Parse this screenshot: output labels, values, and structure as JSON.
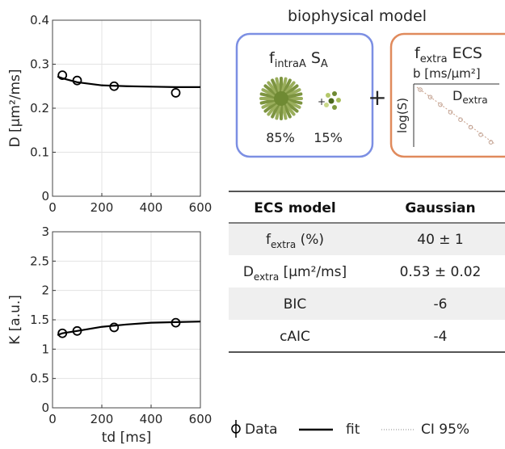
{
  "chart_data": [
    {
      "type": "line",
      "ylabel": "D [μm²/ms]",
      "xlim": [
        0,
        600
      ],
      "xticks": [
        0,
        200,
        400,
        600
      ],
      "ylim": [
        0,
        0.4
      ],
      "yticks": [
        0,
        0.1,
        0.2,
        0.3,
        0.4
      ],
      "grid": true,
      "series": [
        {
          "name": "Data",
          "mode": "markers",
          "color": "#000000",
          "x": [
            40,
            100,
            250,
            500
          ],
          "values": [
            0.275,
            0.263,
            0.25,
            0.235
          ]
        },
        {
          "name": "fit",
          "mode": "line",
          "color": "#000000",
          "x": [
            20,
            40,
            100,
            200,
            300,
            400,
            500,
            600
          ],
          "values": [
            0.272,
            0.268,
            0.259,
            0.252,
            0.25,
            0.249,
            0.248,
            0.248
          ]
        }
      ]
    },
    {
      "type": "line",
      "ylabel": "K [a.u.]",
      "xlabel": "td [ms]",
      "xlim": [
        0,
        600
      ],
      "xticks": [
        0,
        200,
        400,
        600
      ],
      "ylim": [
        0,
        3
      ],
      "yticks": [
        0,
        0.5,
        1,
        1.5,
        2,
        2.5,
        3
      ],
      "grid": true,
      "series": [
        {
          "name": "Data",
          "mode": "markers",
          "color": "#000000",
          "x": [
            40,
            100,
            250,
            500
          ],
          "values": [
            1.27,
            1.31,
            1.37,
            1.45
          ]
        },
        {
          "name": "fit",
          "mode": "line",
          "color": "#000000",
          "x": [
            20,
            40,
            100,
            200,
            300,
            400,
            500,
            600
          ],
          "values": [
            1.24,
            1.27,
            1.31,
            1.38,
            1.42,
            1.45,
            1.46,
            1.47
          ]
        }
      ]
    }
  ],
  "diagram": {
    "title": "biophysical model",
    "box1": {
      "f": "f",
      "f_sub": "intraA",
      "s": "S",
      "s_sub": "A",
      "pct1": "85%",
      "pct2": "15%",
      "plus": "+"
    },
    "plus": "+",
    "box2": {
      "f": "f",
      "f_sub": "extra",
      "label": "ECS",
      "axis_x": "b [ms/μm²]",
      "axis_y": "log(S)",
      "d": "D",
      "d_sub": "extra"
    }
  },
  "table": {
    "header": [
      "ECS model",
      "Gaussian"
    ],
    "rows": [
      {
        "label": "f",
        "sub": "extra",
        "rest": " (%)",
        "value": "40 ± 1"
      },
      {
        "label": "D",
        "sub": "extra",
        "rest": " [μm²/ms]",
        "value": "0.53 ± 0.02"
      },
      {
        "label": "BIC",
        "value": "-6"
      },
      {
        "label": "cAIC",
        "value": "-4"
      }
    ]
  },
  "legend": {
    "data": "Data",
    "fit": "fit",
    "ci": "CI 95%"
  }
}
